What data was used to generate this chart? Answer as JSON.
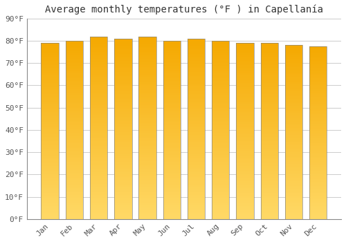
{
  "title": "Average monthly temperatures (°F ) in Capellanía",
  "months": [
    "Jan",
    "Feb",
    "Mar",
    "Apr",
    "May",
    "Jun",
    "Jul",
    "Aug",
    "Sep",
    "Oct",
    "Nov",
    "Dec"
  ],
  "values": [
    79.0,
    80.0,
    82.0,
    81.0,
    82.0,
    80.0,
    81.0,
    80.0,
    79.0,
    79.0,
    78.0,
    77.5
  ],
  "bar_color_top": "#F5A800",
  "bar_color_bottom": "#FFD966",
  "bar_edge_color": "#999999",
  "background_color": "#FFFFFF",
  "grid_color": "#CCCCCC",
  "ylim": [
    0,
    90
  ],
  "yticks": [
    0,
    10,
    20,
    30,
    40,
    50,
    60,
    70,
    80,
    90
  ],
  "ytick_labels": [
    "0°F",
    "10°F",
    "20°F",
    "30°F",
    "40°F",
    "50°F",
    "60°F",
    "70°F",
    "80°F",
    "90°F"
  ],
  "title_fontsize": 10,
  "tick_fontsize": 8,
  "figsize": [
    5.0,
    3.5
  ],
  "dpi": 100
}
